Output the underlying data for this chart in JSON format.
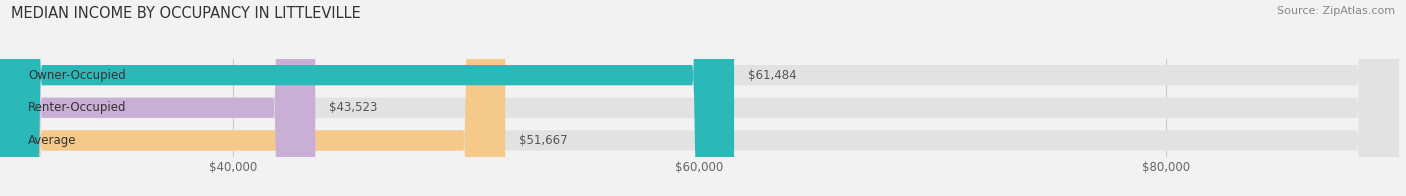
{
  "title": "MEDIAN INCOME BY OCCUPANCY IN LITTLEVILLE",
  "source": "Source: ZipAtlas.com",
  "categories": [
    "Average",
    "Renter-Occupied",
    "Owner-Occupied"
  ],
  "values": [
    51667,
    43523,
    61484
  ],
  "labels": [
    "$51,667",
    "$43,523",
    "$61,484"
  ],
  "bar_colors": [
    "#f5c98a",
    "#c9aed6",
    "#2ab8b8"
  ],
  "background_color": "#f2f2f2",
  "bar_bg_color": "#e2e2e2",
  "xlim_min": 30000,
  "xlim_max": 90000,
  "xticks": [
    40000,
    60000,
    80000
  ],
  "xtick_labels": [
    "$40,000",
    "$60,000",
    "$80,000"
  ],
  "title_fontsize": 10.5,
  "source_fontsize": 8,
  "label_fontsize": 8.5,
  "category_fontsize": 8.5,
  "bar_height": 0.62
}
